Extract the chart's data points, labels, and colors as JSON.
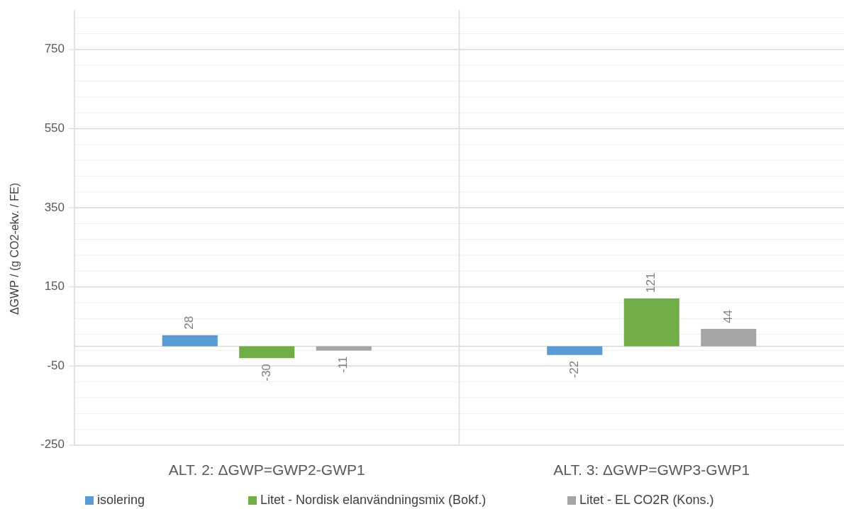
{
  "chart_data": {
    "type": "bar",
    "ylabel": "ΔGWP / (g CO2-ekv. / FE)",
    "categories": [
      "ALT. 2: ΔGWP=GWP2-GWP1",
      "ALT. 3: ΔGWP=GWP3-GWP1"
    ],
    "series": [
      {
        "name": "isolering",
        "color": "#5b9bd5",
        "values": [
          28,
          -22
        ]
      },
      {
        "name": "Litet - Nordisk elanvändningsmix (Bokf.)",
        "color": "#70ad47",
        "values": [
          -30,
          121
        ]
      },
      {
        "name": "Litet - EL CO2R (Kons.)",
        "color": "#a5a5a5",
        "values": [
          -11,
          44
        ]
      }
    ],
    "ylim": [
      -250,
      850
    ],
    "yticks": [
      -250,
      {
        "value": -210,
        "label": null
      },
      {
        "value": -170,
        "label": null
      },
      {
        "value": -130,
        "label": null
      },
      {
        "value": -90,
        "label": null
      },
      -50,
      {
        "value": -10,
        "label": null
      },
      {
        "value": 30,
        "label": null
      },
      {
        "value": 70,
        "label": null
      },
      {
        "value": 110,
        "label": null
      },
      150,
      {
        "value": 190,
        "label": null
      },
      {
        "value": 230,
        "label": null
      },
      {
        "value": 270,
        "label": null
      },
      {
        "value": 310,
        "label": null
      },
      350,
      {
        "value": 390,
        "label": null
      },
      {
        "value": 430,
        "label": null
      },
      {
        "value": 470,
        "label": null
      },
      {
        "value": 510,
        "label": null
      },
      550,
      {
        "value": 590,
        "label": null
      },
      {
        "value": 630,
        "label": null
      },
      {
        "value": 670,
        "label": null
      },
      {
        "value": 710,
        "label": null
      },
      750,
      {
        "value": 790,
        "label": null
      },
      {
        "value": 830,
        "label": null
      }
    ],
    "grid": "y",
    "data_labels": true,
    "legend": "bottom"
  }
}
